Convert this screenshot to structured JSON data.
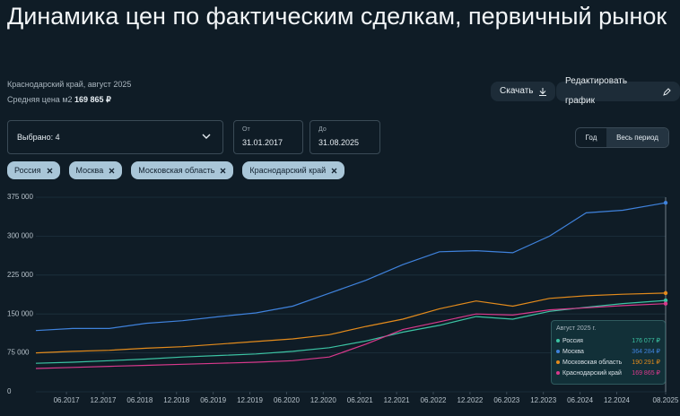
{
  "header": {
    "title": "Динамика цен по фактическим сделкам, первичный рынок",
    "subtitle": "Краснодарский край, август 2025",
    "avg_label": "Средняя цена м2",
    "avg_value": "169 865 ₽",
    "download": "Скачать",
    "edit": "Редактировать график"
  },
  "controls": {
    "select": "Выбрано: 4",
    "from_label": "От",
    "from_value": "31.01.2017",
    "to_label": "До",
    "to_value": "31.08.2025",
    "period_year": "Год",
    "period_all": "Весь период"
  },
  "chart_data": {
    "type": "line",
    "x": [
      "01.2017",
      "07.2017",
      "01.2018",
      "07.2018",
      "01.2019",
      "07.2019",
      "01.2020",
      "07.2020",
      "01.2021",
      "07.2021",
      "01.2022",
      "07.2022",
      "01.2023",
      "07.2023",
      "01.2024",
      "07.2024",
      "01.2025",
      "08.2025"
    ],
    "xlim": [
      "01.2017",
      "08.2025"
    ],
    "xticks": [
      "06.2017",
      "12.2017",
      "06.2018",
      "12.2018",
      "06.2019",
      "12.2019",
      "06.2020",
      "12.2020",
      "06.2021",
      "12.2021",
      "06.2022",
      "12.2022",
      "06.2023",
      "12.2023",
      "06.2024",
      "12.2024",
      "08.2025"
    ],
    "ylim": [
      0,
      375000
    ],
    "yticks": [
      0,
      {
        "value": 75000,
        "label": "75 000"
      },
      {
        "value": 150000,
        "label": "150 000"
      },
      {
        "value": 225000,
        "label": "225 000"
      },
      {
        "value": 300000,
        "label": "300 000"
      },
      {
        "value": 375000,
        "label": "375 000"
      }
    ],
    "grid": true,
    "series": [
      {
        "name": "Россия",
        "color": "#3cc4a4",
        "values": [
          55000,
          57000,
          60000,
          63000,
          67000,
          70000,
          73000,
          78000,
          85000,
          98000,
          115000,
          128000,
          145000,
          140000,
          155000,
          163000,
          170000,
          176077
        ]
      },
      {
        "name": "Москва",
        "color": "#3f82dc",
        "values": [
          118000,
          122000,
          122000,
          132000,
          137000,
          145000,
          152000,
          165000,
          190000,
          215000,
          245000,
          270000,
          272000,
          268000,
          300000,
          345000,
          350000,
          364284
        ]
      },
      {
        "name": "Московская область",
        "color": "#e38b1c",
        "values": [
          75000,
          78000,
          80000,
          84000,
          87000,
          92000,
          97000,
          102000,
          110000,
          126000,
          140000,
          160000,
          175000,
          165000,
          180000,
          185000,
          188000,
          190291
        ]
      },
      {
        "name": "Краснодарский край",
        "color": "#d8398c",
        "values": [
          45000,
          47000,
          49000,
          51000,
          53000,
          55000,
          57000,
          60000,
          67000,
          92000,
          120000,
          135000,
          150000,
          148000,
          158000,
          162000,
          166000,
          169865
        ]
      }
    ],
    "tooltip": {
      "title": "Август 2025 г.",
      "value_labels": [
        "176 077 ₽",
        "364 284 ₽",
        "190 291 ₽",
        "169 865 ₽"
      ]
    }
  }
}
